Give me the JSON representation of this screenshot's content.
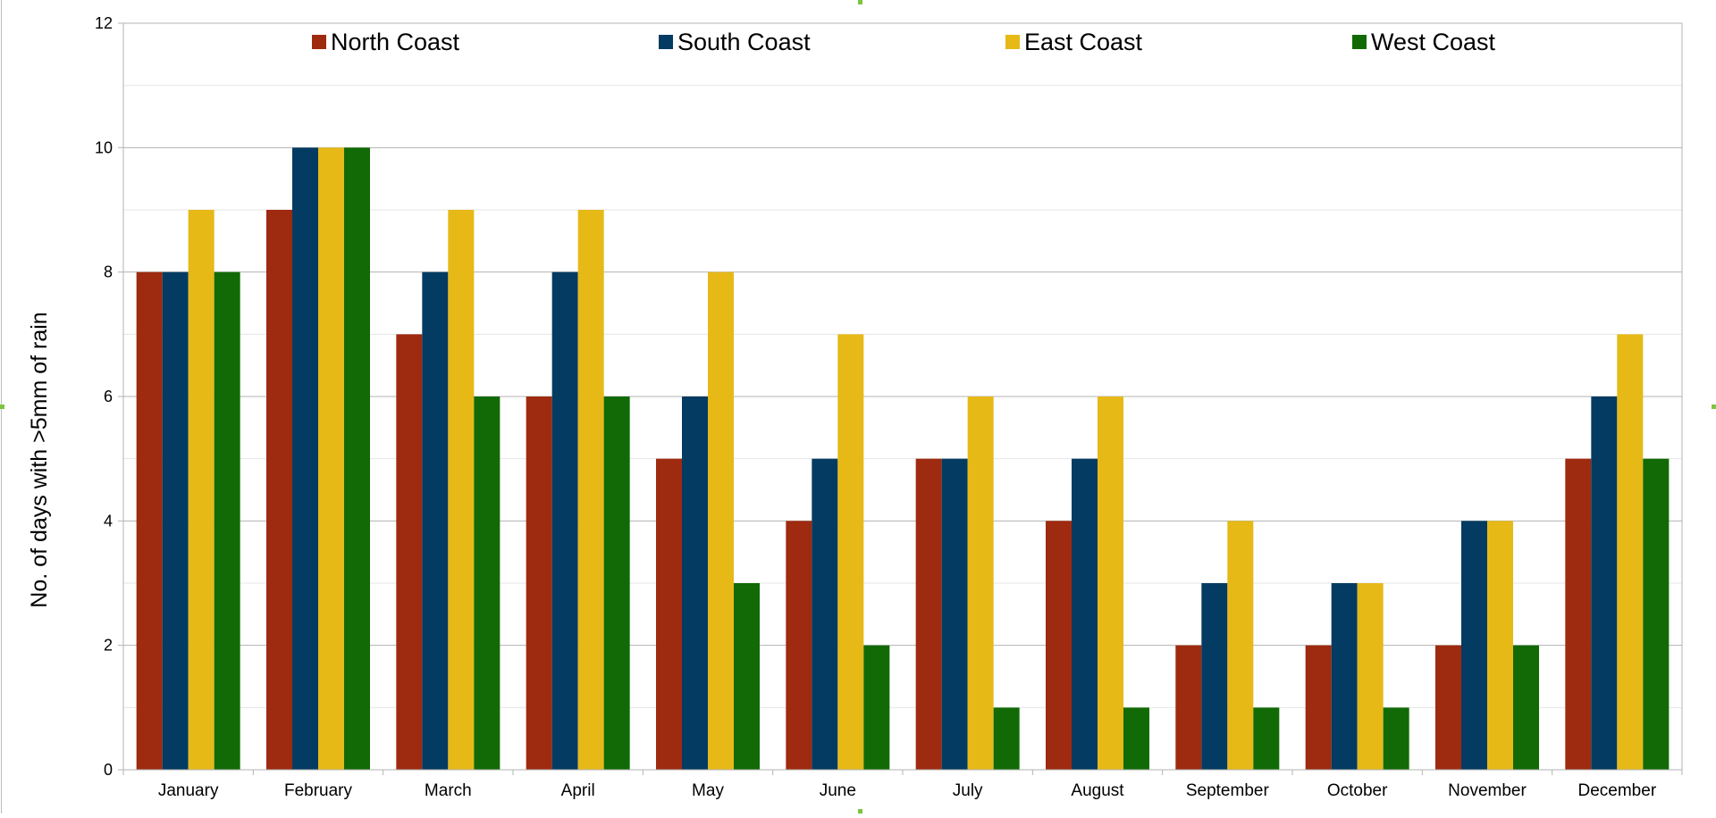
{
  "chart_data": {
    "type": "bar",
    "title": "",
    "xlabel": "",
    "ylabel": "No. of days with >5mm of rain",
    "ylim": [
      0,
      12
    ],
    "yticks": [
      0,
      2,
      4,
      6,
      8,
      10,
      12
    ],
    "grid": "major and minor horizontal",
    "legend_position": "top",
    "categories": [
      "January",
      "February",
      "March",
      "April",
      "May",
      "June",
      "July",
      "August",
      "September",
      "October",
      "November",
      "December"
    ],
    "series": [
      {
        "name": "North Coast",
        "color": "#9e2a0f",
        "values": [
          8,
          9,
          7,
          6,
          5,
          4,
          5,
          4,
          2,
          2,
          2,
          5
        ]
      },
      {
        "name": "South Coast",
        "color": "#043b62",
        "values": [
          8,
          10,
          8,
          8,
          6,
          5,
          5,
          5,
          3,
          3,
          4,
          6
        ]
      },
      {
        "name": "East Coast",
        "color": "#e6b917",
        "values": [
          9,
          10,
          9,
          9,
          8,
          7,
          6,
          6,
          4,
          3,
          4,
          7
        ]
      },
      {
        "name": "West Coast",
        "color": "#116a05",
        "values": [
          8,
          10,
          6,
          6,
          3,
          2,
          1,
          1,
          1,
          1,
          2,
          5
        ]
      }
    ]
  }
}
